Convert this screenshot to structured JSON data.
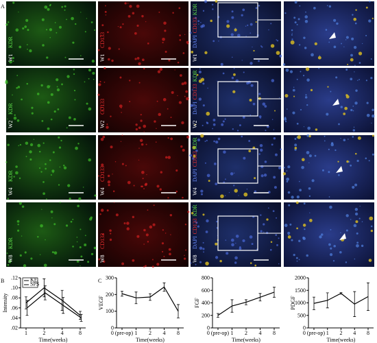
{
  "figure": {
    "panel_a_label": "A",
    "panel_b_label": "B",
    "panel_c_label": "C",
    "rows": [
      {
        "week": "W1",
        "kdr": "KDR",
        "cd133": "CD133",
        "merge": [
          "DAPI",
          "CD133",
          "KDR"
        ]
      },
      {
        "week": "W2",
        "kdr": "KDR",
        "cd133": "CD133",
        "merge": [
          "DAPI",
          "CD133",
          "KDR"
        ]
      },
      {
        "week": "W4",
        "kdr": "KDR",
        "cd133": "CD133",
        "merge": [
          "DAPI",
          "CD133",
          "KDR"
        ]
      },
      {
        "week": "W8",
        "kdr": "KDR",
        "cd133": "CD133",
        "merge": [
          "DAPI",
          "CD133",
          "KDR"
        ]
      }
    ]
  },
  "chart_data": [
    {
      "type": "line",
      "ylabel": "Intensity",
      "xlabel": "Time(weeks)",
      "categories": [
        "1",
        "2",
        "4",
        "8"
      ],
      "series": [
        {
          "name": "KE",
          "color": "#000000",
          "values": [
            0.07,
            0.1,
            0.075,
            0.045
          ],
          "errors": [
            0.012,
            0.018,
            0.02,
            0.008
          ]
        },
        {
          "name": "SPS",
          "color": "#000000",
          "values": [
            0.06,
            0.09,
            0.065,
            0.04
          ],
          "errors": [
            0.015,
            0.014,
            0.016,
            0.007
          ]
        }
      ],
      "ylim": [
        0.02,
        0.12
      ],
      "yticks": [
        {
          "value": 0.02,
          "label": ".02"
        },
        {
          "value": 0.04,
          "label": ".04"
        },
        {
          "value": 0.06,
          "label": ".06"
        },
        {
          "value": 0.08,
          "label": ".08"
        },
        {
          "value": 0.1,
          "label": ".10"
        },
        {
          "value": 0.12,
          "label": ".12"
        }
      ],
      "legend": "upper-left"
    },
    {
      "type": "line",
      "ylabel": "VEGF",
      "xlabel": "Time(weeks)",
      "categories": [
        "0 (pre-op)",
        "1",
        "2",
        "4",
        "8"
      ],
      "values": [
        205,
        180,
        185,
        245,
        100
      ],
      "errors": [
        15,
        35,
        20,
        25,
        40
      ],
      "color": "#000000",
      "ylim": [
        0,
        300
      ],
      "yticks": [
        0,
        100,
        200,
        300
      ]
    },
    {
      "type": "line",
      "ylabel": "FGF",
      "xlabel": "Time(weeks)",
      "categories": [
        "0 (pre-op)",
        "1",
        "2",
        "4",
        "8"
      ],
      "values": [
        200,
        350,
        410,
        490,
        570
      ],
      "errors": [
        30,
        100,
        40,
        60,
        80
      ],
      "color": "#000000",
      "ylim": [
        0,
        800
      ],
      "yticks": [
        0,
        200,
        400,
        600,
        800
      ]
    },
    {
      "type": "line",
      "ylabel": "PDGF",
      "xlabel": "Time(weeks)",
      "categories": [
        "0 (pre-op)",
        "1",
        "2",
        "4",
        "8"
      ],
      "values": [
        980,
        1100,
        1380,
        950,
        1250
      ],
      "errors": [
        250,
        300,
        30,
        500,
        550
      ],
      "color": "#000000",
      "ylim": [
        0,
        2000
      ],
      "yticks": [
        0,
        500,
        1000,
        1500,
        2000
      ]
    }
  ]
}
